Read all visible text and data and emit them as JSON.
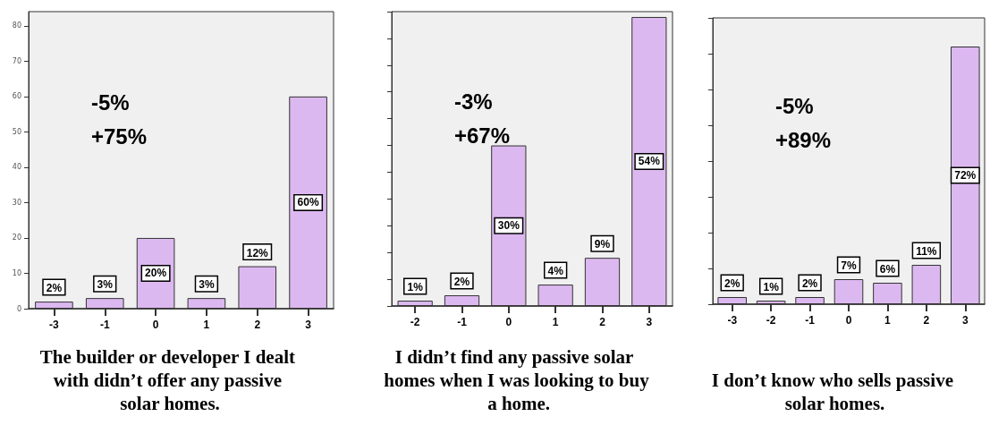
{
  "chart_data": [
    {
      "type": "bar",
      "title": "The builder or developer I dealt with didn’t offer any passive solar homes.",
      "categories": [
        "-3",
        "-1",
        "0",
        "1",
        "2",
        "3"
      ],
      "values": [
        2,
        3,
        20,
        3,
        12,
        60
      ],
      "color": "#dcb8f0",
      "value_labels": [
        "2%",
        "3%",
        "20%",
        "3%",
        "12%",
        "60%"
      ],
      "ylim": [
        0,
        84
      ],
      "yticks": [
        0,
        10,
        20,
        30,
        40,
        50,
        60,
        70,
        80
      ],
      "grid": false,
      "annotations": [
        "-5%",
        "+75%"
      ]
    },
    {
      "type": "bar",
      "title": "I didn’t find any passive solar homes when I was looking to buy a home.",
      "categories": [
        "-2",
        "-1",
        "0",
        "1",
        "2",
        "3"
      ],
      "values": [
        1,
        2,
        30,
        4,
        9,
        54
      ],
      "color": "#dcb8f0",
      "value_labels": [
        "1%",
        "2%",
        "30%",
        "4%",
        "9%",
        "54%"
      ],
      "tick_labels": "x",
      "grid": false,
      "annotations": [
        "-3%",
        "+67%"
      ]
    },
    {
      "type": "bar",
      "title": "I don’t know who sells passive solar homes.",
      "categories": [
        "-3",
        "-2",
        "-1",
        "0",
        "1",
        "2",
        "3"
      ],
      "values": [
        2,
        1,
        2,
        7,
        6,
        11,
        72
      ],
      "color": "#dcb8f0",
      "value_labels": [
        "2%",
        "1%",
        "2%",
        "7%",
        "6%",
        "11%",
        "72%"
      ],
      "tick_labels": "x",
      "grid": false,
      "annotations": [
        "-5%",
        "+89%"
      ]
    }
  ]
}
